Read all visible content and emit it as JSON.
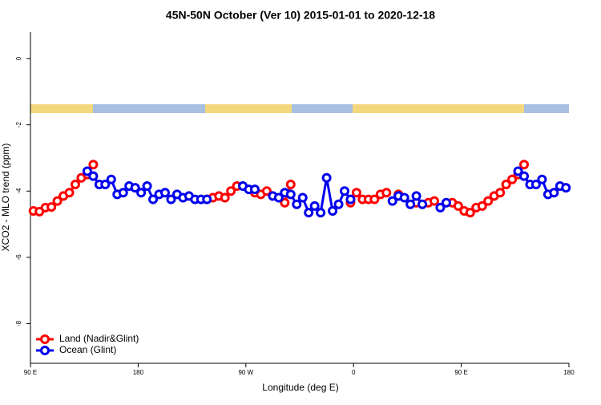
{
  "chart_data": {
    "type": "line",
    "title": "45N-50N October (Ver 10)   2015-01-01 to 2020-12-18",
    "xlabel": "Longitude (deg E)",
    "ylabel": "XCO2 - MLO trend (ppm)",
    "xlim": [
      90,
      540
    ],
    "ylim": [
      -9.2,
      0.8
    ],
    "xticks": [
      {
        "value": 90,
        "label": "90 E"
      },
      180,
      {
        "value": 270,
        "label": "90 W"
      },
      {
        "value": 360,
        "label": "0"
      },
      {
        "value": 450,
        "label": "90 E"
      },
      {
        "value": 540,
        "label": "180"
      }
    ],
    "yticks": [
      0,
      -2,
      -4,
      -6,
      -8
    ],
    "legend": "bottom-left",
    "x": [
      92.5,
      97.5,
      102.5,
      107.5,
      112.5,
      117.5,
      122.5,
      127.5,
      132.5,
      137.5,
      142.5,
      147.5,
      152.5,
      157.5,
      162.5,
      167.5,
      172.5,
      177.5,
      182.5,
      187.5,
      192.5,
      197.5,
      202.5,
      207.5,
      212.5,
      217.5,
      222.5,
      227.5,
      232.5,
      237.5,
      242.5,
      247.5,
      252.5,
      257.5,
      262.5,
      267.5,
      272.5,
      277.5,
      282.5,
      287.5,
      292.5,
      297.5,
      302.5,
      307.5,
      312.5,
      317.5,
      322.5,
      327.5,
      332.5,
      337.5,
      342.5,
      347.5,
      352.5,
      357.5,
      362.5,
      367.5,
      372.5,
      377.5,
      382.5,
      387.5,
      392.5,
      397.5,
      402.5,
      407.5,
      412.5,
      417.5,
      422.5,
      427.5,
      432.5,
      437.5,
      442.5,
      447.5,
      452.5,
      457.5,
      462.5,
      467.5,
      472.5,
      477.5,
      482.5,
      487.5,
      492.5,
      497.5,
      502.5,
      507.5,
      512.5,
      517.5,
      522.5,
      527.5,
      532.5,
      537.5
    ],
    "series": [
      {
        "name": "Land (Nadir&Glint)",
        "color": "#ff0000",
        "values": [
          -4.6,
          -4.62,
          -4.5,
          -4.48,
          -4.3,
          -4.15,
          -4.05,
          -3.8,
          -3.6,
          -3.5,
          -3.2,
          null,
          null,
          null,
          null,
          null,
          null,
          null,
          null,
          null,
          null,
          null,
          null,
          null,
          null,
          null,
          null,
          null,
          null,
          -4.25,
          -4.2,
          -4.15,
          -4.2,
          -4.0,
          -3.85,
          null,
          null,
          -4.05,
          -4.1,
          -4.0,
          null,
          null,
          -4.35,
          -3.8,
          null,
          null,
          null,
          null,
          null,
          null,
          null,
          null,
          null,
          -4.35,
          -4.05,
          -4.25,
          -4.25,
          -4.25,
          -4.1,
          -4.05,
          null,
          -4.1,
          null,
          null,
          -4.35,
          null,
          -4.35,
          -4.3,
          null,
          null,
          -4.35,
          -4.45,
          -4.6,
          -4.65,
          -4.5,
          -4.45,
          -4.3,
          -4.15,
          -4.05,
          -3.8,
          -3.65,
          -3.5,
          -3.2,
          null,
          null,
          null,
          null,
          null,
          null,
          null
        ]
      },
      {
        "name": "Ocean (Glint)",
        "color": "#0000ee",
        "values": [
          null,
          null,
          null,
          null,
          null,
          null,
          null,
          null,
          null,
          -3.4,
          -3.55,
          -3.8,
          -3.8,
          -3.65,
          -4.1,
          -4.05,
          -3.85,
          -3.9,
          -4.05,
          -3.85,
          -4.25,
          -4.1,
          -4.05,
          -4.25,
          -4.1,
          -4.2,
          -4.15,
          -4.25,
          -4.25,
          -4.25,
          null,
          null,
          null,
          null,
          null,
          -3.85,
          -3.95,
          -3.95,
          null,
          null,
          -4.15,
          -4.2,
          -4.05,
          -4.1,
          -4.4,
          -4.2,
          -4.65,
          -4.45,
          -4.65,
          -3.6,
          -4.6,
          -4.4,
          -4.0,
          -4.25,
          null,
          null,
          null,
          null,
          null,
          null,
          -4.3,
          -4.15,
          -4.2,
          -4.4,
          -4.15,
          -4.4,
          null,
          null,
          -4.5,
          -4.35,
          null,
          null,
          null,
          null,
          null,
          null,
          null,
          null,
          null,
          null,
          null,
          -3.4,
          -3.55,
          -3.8,
          -3.8,
          -3.65,
          -4.1,
          -4.05,
          -3.85,
          -3.9
        ]
      }
    ]
  }
}
